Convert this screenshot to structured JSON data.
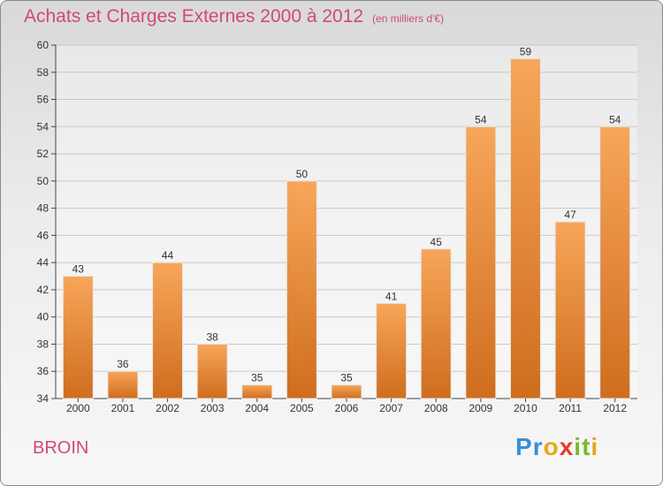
{
  "title": "Achats et Charges Externes 2000 à 2012",
  "unit_label": "(en milliers d'€)",
  "place": "BROIN",
  "logo": {
    "letters": [
      "P",
      "r",
      "o",
      "x",
      "i",
      "t",
      "i"
    ],
    "colors": [
      "#3b8fd6",
      "#3b8fd6",
      "#e6a817",
      "#e23a2f",
      "#7cb82f",
      "#7cb82f",
      "#e6a817"
    ]
  },
  "colors": {
    "bar_light": "#f7a65a",
    "bar_dark": "#cf6d1e",
    "title": "#d24a6e"
  },
  "chart_data": {
    "type": "bar",
    "title": "Achats et Charges Externes 2000 à 2012",
    "categories": [
      "2000",
      "2001",
      "2002",
      "2003",
      "2004",
      "2005",
      "2006",
      "2007",
      "2008",
      "2009",
      "2010",
      "2011",
      "2012"
    ],
    "values": [
      43,
      36,
      44,
      38,
      35,
      50,
      35,
      41,
      45,
      54,
      59,
      47,
      54
    ],
    "ylim": [
      34,
      60
    ],
    "yticks": [
      34,
      36,
      38,
      40,
      42,
      44,
      46,
      48,
      50,
      52,
      54,
      56,
      58,
      60
    ],
    "grid": true,
    "data_labels": true
  }
}
